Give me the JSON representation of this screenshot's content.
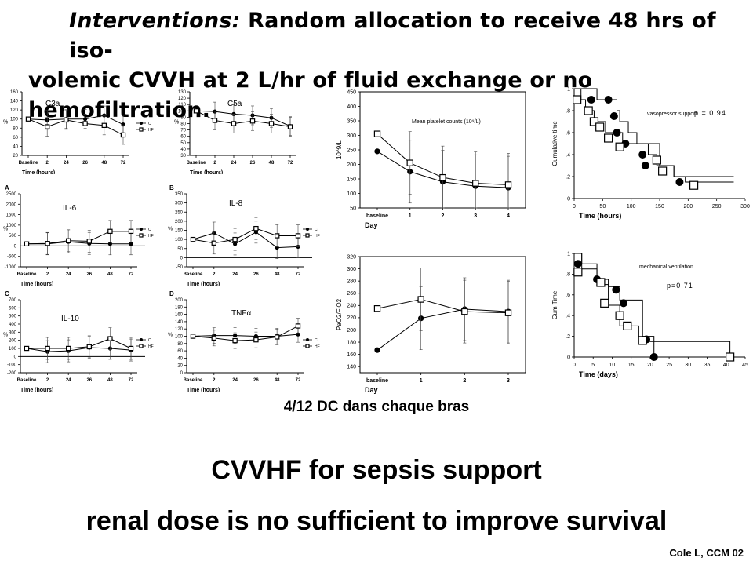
{
  "header": {
    "line1_bold_italic": "Interventions:",
    "line1_rest": "Random allocation to receive 48 hrs of iso-",
    "line2": "volemic CVVH at 2 L/hr of fluid exchange or no hemofiltration."
  },
  "chart_data": [
    {
      "id": "c3a",
      "type": "line",
      "title": "C3a",
      "xlabel": "Time (hours)",
      "ylabel": "%",
      "categories": [
        "Baseline",
        "2",
        "24",
        "26",
        "48",
        "72"
      ],
      "yticks": [
        20,
        40,
        60,
        80,
        100,
        120,
        140,
        160
      ],
      "ylim": [
        20,
        160
      ],
      "legend": [
        "C",
        "HF"
      ],
      "series": [
        {
          "name": "C",
          "marker": "filled",
          "values": [
            100,
            98,
            100,
            100,
            108,
            88
          ]
        },
        {
          "name": "HF",
          "marker": "open",
          "values": [
            100,
            83,
            98,
            90,
            86,
            65
          ]
        }
      ]
    },
    {
      "id": "c5a",
      "type": "line",
      "title": "C5a",
      "xlabel": "Time (hours)",
      "ylabel": "%",
      "categories": [
        "Baseline",
        "2",
        "24",
        "26",
        "48",
        "72"
      ],
      "yticks": [
        30,
        40,
        50,
        60,
        70,
        80,
        90,
        100,
        110,
        120,
        130
      ],
      "ylim": [
        30,
        130
      ],
      "legend": [],
      "series": [
        {
          "name": "C",
          "marker": "filled",
          "values": [
            100,
            99,
            95,
            93,
            89,
            76
          ]
        },
        {
          "name": "HF",
          "marker": "open",
          "values": [
            100,
            85,
            80,
            84,
            80,
            75
          ]
        }
      ]
    },
    {
      "id": "il6",
      "type": "line",
      "title": "IL-6",
      "panel_letter": "A",
      "xlabel": "Time (hours)",
      "ylabel": "%",
      "categories": [
        "Baseline",
        "2",
        "24",
        "26",
        "48",
        "72"
      ],
      "yticks": [
        -1000,
        -500,
        0,
        500,
        1000,
        1500,
        2000,
        2500
      ],
      "ylim": [
        -1000,
        2500
      ],
      "legend": [
        "C",
        "HF"
      ],
      "series": [
        {
          "name": "C",
          "marker": "filled",
          "values": [
            100,
            100,
            200,
            120,
            100,
            100
          ]
        },
        {
          "name": "HF",
          "marker": "open",
          "values": [
            100,
            120,
            250,
            230,
            700,
            700
          ]
        }
      ]
    },
    {
      "id": "il8",
      "type": "line",
      "title": "IL-8",
      "panel_letter": "B",
      "xlabel": "Time (hours)",
      "ylabel": "%",
      "categories": [
        "Baseline",
        "2",
        "24",
        "26",
        "48",
        "72"
      ],
      "yticks": [
        -50,
        0,
        50,
        100,
        150,
        200,
        250,
        300,
        350
      ],
      "ylim": [
        -50,
        350
      ],
      "legend": [
        "C",
        "HF"
      ],
      "series": [
        {
          "name": "C",
          "marker": "filled",
          "values": [
            100,
            135,
            75,
            140,
            55,
            60
          ]
        },
        {
          "name": "HF",
          "marker": "open",
          "values": [
            100,
            80,
            100,
            160,
            120,
            120
          ]
        }
      ]
    },
    {
      "id": "il10",
      "type": "line",
      "title": "IL-10",
      "panel_letter": "C",
      "xlabel": "Time (hours)",
      "ylabel": "%",
      "categories": [
        "Baseline",
        "2",
        "24",
        "26",
        "48",
        "72"
      ],
      "yticks": [
        -200,
        -100,
        0,
        100,
        200,
        300,
        400,
        500,
        600,
        700
      ],
      "ylim": [
        -200,
        700
      ],
      "legend": [
        "C",
        "HF"
      ],
      "series": [
        {
          "name": "C",
          "marker": "filled",
          "values": [
            100,
            60,
            70,
            110,
            100,
            80
          ]
        },
        {
          "name": "HF",
          "marker": "open",
          "values": [
            100,
            100,
            100,
            120,
            220,
            100
          ]
        }
      ]
    },
    {
      "id": "tnf",
      "type": "line",
      "title": "TNFα",
      "panel_letter": "D",
      "xlabel": "Time (hours)",
      "ylabel": "%",
      "categories": [
        "Baseline",
        "2",
        "24",
        "26",
        "48",
        "72"
      ],
      "yticks": [
        0,
        20,
        40,
        60,
        80,
        100,
        120,
        140,
        160,
        180,
        200
      ],
      "ylim": [
        0,
        200
      ],
      "legend": [
        "C",
        "HF"
      ],
      "series": [
        {
          "name": "C",
          "marker": "filled",
          "values": [
            100,
            102,
            102,
            100,
            100,
            105
          ]
        },
        {
          "name": "HF",
          "marker": "open",
          "values": [
            100,
            95,
            88,
            90,
            98,
            128
          ]
        }
      ]
    },
    {
      "id": "platelet",
      "type": "line",
      "title": "Mean platelet counts (10⁹/L)",
      "xlabel": "Day",
      "ylabel": "10^9/L",
      "categories": [
        "baseline",
        "1",
        "2",
        "3",
        "4"
      ],
      "yticks": [
        50,
        100,
        150,
        200,
        250,
        300,
        350,
        400,
        450
      ],
      "ylim": [
        50,
        450
      ],
      "series": [
        {
          "name": "filled",
          "marker": "filled",
          "values": [
            245,
            175,
            140,
            125,
            120
          ]
        },
        {
          "name": "open",
          "marker": "open",
          "values": [
            305,
            205,
            155,
            135,
            130
          ]
        }
      ]
    },
    {
      "id": "pao2",
      "type": "line",
      "title": "",
      "xlabel": "Day",
      "ylabel": "PaO2/FiO2",
      "categories": [
        "baseline",
        "1",
        "2",
        "3"
      ],
      "yticks": [
        140,
        160,
        180,
        200,
        220,
        240,
        260,
        280,
        300,
        320
      ],
      "ylim": [
        130,
        320
      ],
      "series": [
        {
          "name": "filled",
          "marker": "filled",
          "values": [
            167,
            219,
            234,
            230
          ]
        },
        {
          "name": "open",
          "marker": "open",
          "values": [
            235,
            250,
            230,
            228
          ]
        }
      ]
    },
    {
      "id": "vaso",
      "type": "line",
      "subtype": "survival",
      "title": "vasopressor support",
      "annotation": "p = 0.94",
      "xlabel": "Time (hours)",
      "ylabel": "Cumulative time",
      "xticks": [
        0,
        50,
        100,
        150,
        200,
        250,
        300
      ],
      "xlim": [
        0,
        300
      ],
      "yticks": [
        0,
        0.2,
        0.4,
        0.6,
        0.8,
        1
      ],
      "ytick_labels": [
        "0",
        ".2",
        ".4",
        ".6",
        ".8",
        "1"
      ],
      "ylim": [
        0,
        1
      ],
      "series": [
        {
          "name": "filled",
          "marker": "filled",
          "steps": [
            [
              0,
              1
            ],
            [
              40,
              0.9
            ],
            [
              75,
              0.8
            ],
            [
              80,
              0.7
            ],
            [
              95,
              0.6
            ],
            [
              110,
              0.5
            ],
            [
              130,
              0.4
            ],
            [
              145,
              0.3
            ],
            [
              175,
              0.2
            ],
            [
              280,
              0.2
            ]
          ],
          "markers": [
            [
              30,
              0.9
            ],
            [
              60,
              0.9
            ],
            [
              70,
              0.75
            ],
            [
              75,
              0.6
            ],
            [
              90,
              0.5
            ],
            [
              120,
              0.4
            ],
            [
              125,
              0.3
            ],
            [
              185,
              0.15
            ]
          ]
        },
        {
          "name": "open",
          "marker": "open",
          "steps": [
            [
              0,
              1
            ],
            [
              12,
              0.9
            ],
            [
              20,
              0.8
            ],
            [
              35,
              0.7
            ],
            [
              55,
              0.6
            ],
            [
              85,
              0.5
            ],
            [
              150,
              0.3
            ],
            [
              175,
              0.2
            ],
            [
              195,
              0.15
            ],
            [
              280,
              0.15
            ]
          ],
          "markers": [
            [
              5,
              0.9
            ],
            [
              25,
              0.8
            ],
            [
              35,
              0.7
            ],
            [
              45,
              0.65
            ],
            [
              60,
              0.55
            ],
            [
              80,
              0.47
            ],
            [
              145,
              0.35
            ],
            [
              155,
              0.25
            ],
            [
              210,
              0.12
            ]
          ]
        }
      ]
    },
    {
      "id": "mv",
      "type": "line",
      "subtype": "survival",
      "title": "mechanical ventilation",
      "annotation": "p=0.71",
      "xlabel": "Time (days)",
      "ylabel": "Cum Time",
      "xticks": [
        0,
        5,
        10,
        15,
        20,
        25,
        30,
        35,
        40,
        45
      ],
      "xlim": [
        0,
        45
      ],
      "yticks": [
        0,
        0.2,
        0.4,
        0.6,
        0.8,
        1
      ],
      "ytick_labels": [
        "0",
        ".2",
        ".4",
        ".6",
        ".8",
        "1"
      ],
      "ylim": [
        0,
        1
      ],
      "series": [
        {
          "name": "filled",
          "marker": "filled",
          "steps": [
            [
              0,
              1
            ],
            [
              2,
              0.9
            ],
            [
              6,
              0.75
            ],
            [
              9,
              0.68
            ],
            [
              12,
              0.55
            ],
            [
              18,
              0.2
            ],
            [
              21,
              0
            ]
          ],
          "markers": [
            [
              1,
              0.9
            ],
            [
              6,
              0.75
            ],
            [
              11,
              0.65
            ],
            [
              13,
              0.52
            ],
            [
              19,
              0.17
            ],
            [
              21,
              0
            ]
          ]
        },
        {
          "name": "open",
          "marker": "open",
          "steps": [
            [
              0,
              1
            ],
            [
              2,
              0.85
            ],
            [
              6,
              0.7
            ],
            [
              9,
              0.5
            ],
            [
              12,
              0.3
            ],
            [
              17,
              0.15
            ],
            [
              41,
              0
            ]
          ],
          "markers": [
            [
              1,
              0.82
            ],
            [
              7,
              0.72
            ],
            [
              8,
              0.52
            ],
            [
              12,
              0.4
            ],
            [
              14,
              0.3
            ],
            [
              18,
              0.16
            ],
            [
              41,
              0
            ]
          ]
        }
      ]
    }
  ],
  "captions": {
    "dc": "4/12 DC dans chaque bras",
    "title": "CVVHF for sepsis support",
    "subtitle": "renal dose is no sufficient to improve survival",
    "citation": "Cole L, CCM  02"
  }
}
